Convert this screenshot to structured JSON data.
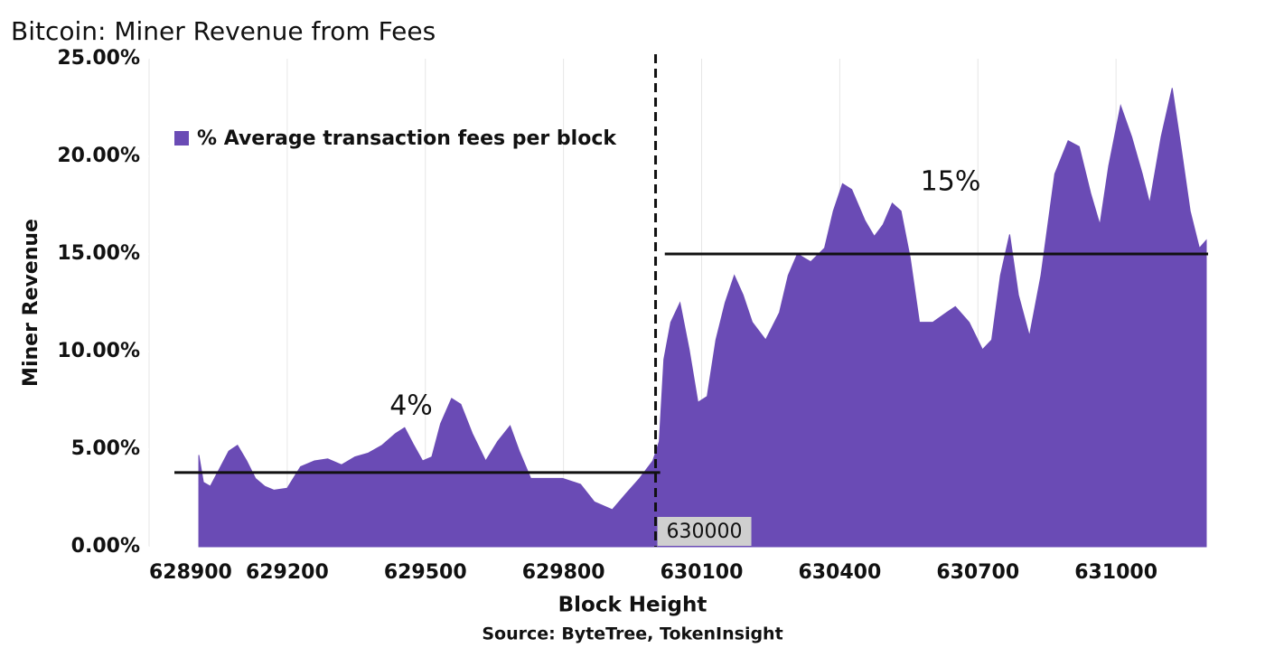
{
  "chart_data": {
    "type": "area",
    "title": "Bitcoin: Miner Revenue from Fees",
    "x_label": "Block Height",
    "y_label": "Miner Revenue",
    "source": "Source: ByteTree, TokenInsight",
    "x": [
      629008,
      629018,
      629033,
      629053,
      629073,
      629092,
      629112,
      629131,
      629151,
      629171,
      629200,
      629229,
      629259,
      629288,
      629318,
      629347,
      629376,
      629406,
      629435,
      629455,
      629475,
      629494,
      629514,
      629533,
      629557,
      629577,
      629602,
      629631,
      629657,
      629684,
      629704,
      629729,
      629759,
      629798,
      629837,
      629867,
      629906,
      629935,
      629965,
      629994,
      630008,
      630018,
      630033,
      630053,
      630073,
      630092,
      630112,
      630131,
      630151,
      630171,
      630190,
      630210,
      630239,
      630269,
      630288,
      630308,
      630337,
      630367,
      630386,
      630406,
      630426,
      630455,
      630475,
      630494,
      630514,
      630533,
      630553,
      630573,
      630602,
      630632,
      630651,
      630681,
      630710,
      630730,
      630749,
      630769,
      630788,
      630812,
      630837,
      630867,
      630896,
      630920,
      630945,
      630965,
      630984,
      631010,
      631034,
      631057,
      631073,
      631098,
      631122,
      631141,
      631161,
      631181,
      631196
    ],
    "series": [
      {
        "name": "% Average transaction fees per block",
        "color": "#6a4bb5",
        "values": [
          4.7,
          3.3,
          3.1,
          4.0,
          4.9,
          5.2,
          4.4,
          3.5,
          3.1,
          2.9,
          3.0,
          4.1,
          4.4,
          4.5,
          4.2,
          4.6,
          4.8,
          5.2,
          5.8,
          6.1,
          5.2,
          4.4,
          4.6,
          6.3,
          7.6,
          7.3,
          5.8,
          4.4,
          5.4,
          6.2,
          4.9,
          3.5,
          3.5,
          3.5,
          3.2,
          2.3,
          1.9,
          2.7,
          3.5,
          4.4,
          5.4,
          9.6,
          11.5,
          12.5,
          10.1,
          7.4,
          7.7,
          10.6,
          12.5,
          13.9,
          12.9,
          11.5,
          10.6,
          12.0,
          13.9,
          15.0,
          14.6,
          15.3,
          17.2,
          18.6,
          18.3,
          16.7,
          15.9,
          16.5,
          17.6,
          17.2,
          14.8,
          11.5,
          11.5,
          12.0,
          12.3,
          11.5,
          10.1,
          10.6,
          13.9,
          16.0,
          12.9,
          10.8,
          13.9,
          19.1,
          20.8,
          20.5,
          18.1,
          16.5,
          19.5,
          22.6,
          21.0,
          19.1,
          17.6,
          21.0,
          23.5,
          20.5,
          17.2,
          15.3,
          15.7
        ]
      }
    ],
    "xlim": [
      628900,
      631300
    ],
    "xticks": [
      628900,
      629200,
      629500,
      629800,
      630100,
      630400,
      630700,
      631000
    ],
    "ylim": [
      0,
      25
    ],
    "yticks": [
      {
        "value": 0,
        "label": "0.00%"
      },
      {
        "value": 5,
        "label": "5.00%"
      },
      {
        "value": 10,
        "label": "10.00%"
      },
      {
        "value": 15,
        "label": "15.00%"
      },
      {
        "value": 20,
        "label": "20.00%"
      },
      {
        "value": 25,
        "label": "25.00%"
      }
    ],
    "grid": "x",
    "legend": "top-left",
    "average_lines": [
      {
        "label": "4%",
        "value": 3.8,
        "start": 628955,
        "end": 630010
      },
      {
        "label": "15%",
        "value": 15.0,
        "start": 630020,
        "end": 631200
      }
    ],
    "marker_line": {
      "label": "630000",
      "x": 630000
    }
  }
}
